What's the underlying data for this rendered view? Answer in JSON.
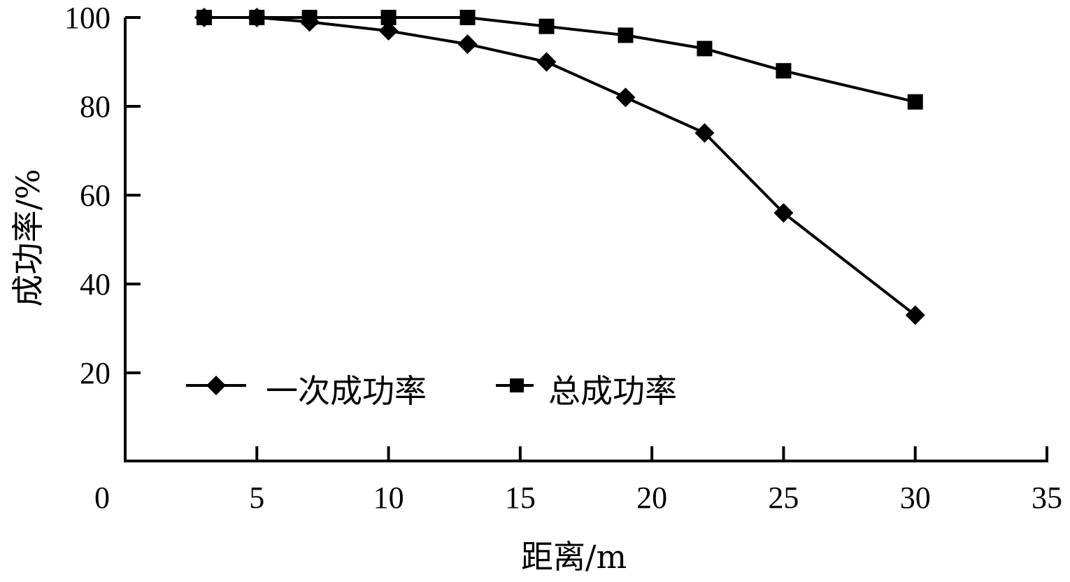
{
  "chart_data": {
    "type": "line",
    "title": "",
    "xlabel": "距离/m",
    "ylabel": "成功率/%",
    "xlim": [
      0,
      35
    ],
    "ylim": [
      0,
      100
    ],
    "xticks": [
      0,
      5,
      10,
      15,
      20,
      25,
      30,
      35
    ],
    "yticks": [
      20,
      40,
      60,
      80,
      100
    ],
    "grid": false,
    "legend_position": "lower-left-inside",
    "x": [
      3,
      5,
      7,
      10,
      13,
      16,
      19,
      22,
      25,
      30
    ],
    "series": [
      {
        "name": "一次成功率",
        "marker": "diamond",
        "color": "#000000",
        "values": [
          100,
          100,
          99,
          97,
          94,
          90,
          82,
          74,
          56,
          33
        ]
      },
      {
        "name": "总成功率",
        "marker": "square",
        "color": "#000000",
        "values": [
          100,
          100,
          100,
          100,
          100,
          98,
          96,
          93,
          88,
          81
        ]
      }
    ]
  },
  "axes": {
    "x_title": "距离/m",
    "y_title": "成功率/%",
    "x_tick_labels": [
      "0",
      "5",
      "10",
      "15",
      "20",
      "25",
      "30",
      "35"
    ],
    "y_tick_labels": [
      "20",
      "40",
      "60",
      "80",
      "100"
    ]
  },
  "legend": {
    "items": [
      {
        "label": "一次成功率",
        "marker": "diamond"
      },
      {
        "label": "总成功率",
        "marker": "square"
      }
    ]
  }
}
